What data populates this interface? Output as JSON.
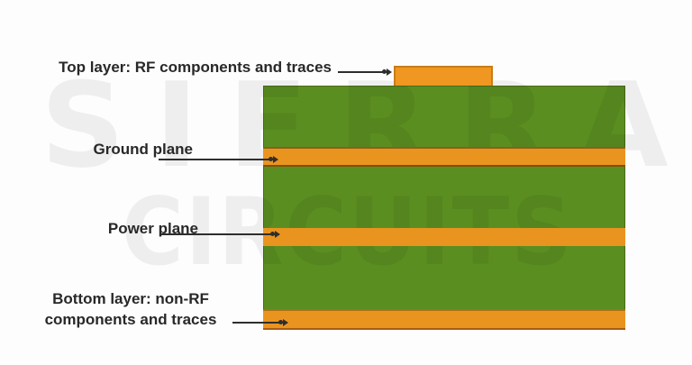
{
  "diagram": {
    "type": "pcb-stackup-cross-section",
    "labels": {
      "top": {
        "text": "Top layer: RF components and traces"
      },
      "ground": {
        "text": "Ground plane"
      },
      "power": {
        "text": "Power plane"
      },
      "bottom": {
        "line1": "Bottom layer: non-RF",
        "line2": "components and traces"
      }
    },
    "watermark": {
      "line1": "SIERRA",
      "line2": "CIRCUITS"
    },
    "colors": {
      "substrate_green": "#5b8e20",
      "copper_orange": "#ea9420",
      "pad_orange": "#ef9721",
      "pad_border": "#c87c17",
      "band_edge_dark": "#7a4f10",
      "board_bottom_edge": "#a85c14",
      "label_text": "#282828",
      "arrow": "#2e2e2e",
      "watermark_tint": "rgba(0,0,0,0.058)",
      "background": "#fdfdfd"
    }
  }
}
